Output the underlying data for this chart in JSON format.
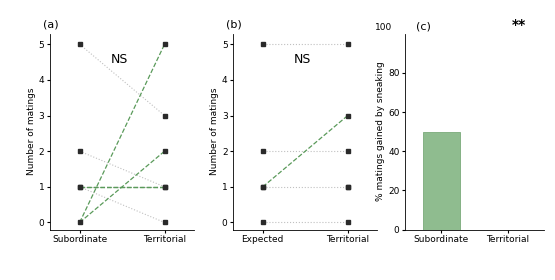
{
  "panel_a": {
    "label": "(a)",
    "ns_text": "NS",
    "xlabel_left": "Subordinate",
    "xlabel_right": "Territorial",
    "ylabel": "Number of matings",
    "ylim": [
      -0.2,
      5.3
    ],
    "yticks": [
      0,
      1,
      2,
      3,
      4,
      5
    ],
    "sub_dots": [
      5,
      2,
      1,
      1,
      0
    ],
    "ter_dots": [
      5,
      3,
      2,
      1,
      1,
      0
    ],
    "lines_green": [
      [
        0,
        5
      ],
      [
        0,
        2
      ],
      [
        1,
        1
      ],
      [
        1,
        1
      ]
    ],
    "lines_gray": [
      [
        5,
        3
      ],
      [
        2,
        1
      ],
      [
        1,
        1
      ],
      [
        1,
        0
      ]
    ]
  },
  "panel_b": {
    "label": "(b)",
    "ns_text": "NS",
    "xlabel_left": "Expected",
    "xlabel_right": "Territorial",
    "ylabel": "Number of matings",
    "ylim": [
      -0.2,
      5.3
    ],
    "yticks": [
      0,
      1,
      2,
      3,
      4,
      5
    ],
    "exp_dots": [
      5,
      2,
      1,
      1,
      0
    ],
    "ter_dots": [
      5,
      3,
      2,
      1,
      1,
      0
    ],
    "lines_green": [
      [
        1,
        3
      ]
    ],
    "lines_gray": [
      [
        5,
        5
      ],
      [
        2,
        2
      ],
      [
        1,
        1
      ],
      [
        0,
        0
      ]
    ]
  },
  "panel_c": {
    "label": "(c)",
    "sig_text": "**",
    "ylabel": "% matings gained by sneaking",
    "ylim": [
      0,
      100
    ],
    "yticks": [
      0,
      20,
      40,
      60,
      80
    ],
    "ymax_label": "100",
    "bar_categories": [
      "Subordinate",
      "Territorial"
    ],
    "bar_values": [
      50,
      0
    ],
    "bar_color": "#8fbc8f",
    "bar_edge_color": "#7aaa7a"
  },
  "green_color": "#5a9a5a",
  "gray_color": "#c0c0c0",
  "dot_color": "#2a2a2a",
  "dot_size": 3.0
}
